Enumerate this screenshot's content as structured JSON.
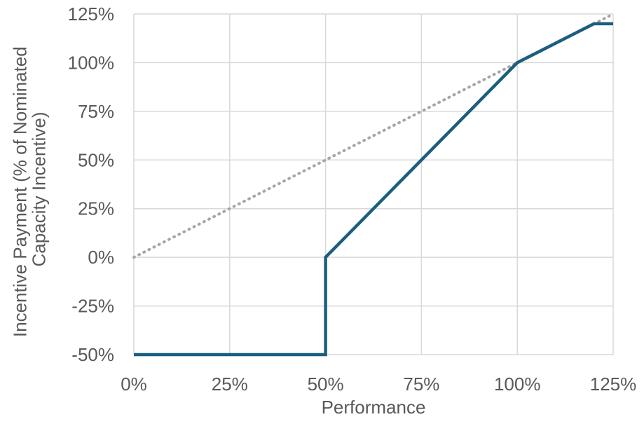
{
  "chart_data": {
    "type": "line",
    "xlabel": "Performance",
    "ylabel_lines": [
      "Incentive Payment (% of Nominated",
      "Capacity Incentive)"
    ],
    "xlim": [
      0,
      125
    ],
    "ylim": [
      -50,
      125
    ],
    "x_ticks": [
      0,
      25,
      50,
      75,
      100,
      125
    ],
    "y_ticks": [
      -50,
      -25,
      0,
      25,
      50,
      75,
      100,
      125
    ],
    "x_tick_labels": [
      "0%",
      "25%",
      "50%",
      "75%",
      "100%",
      "125%"
    ],
    "y_tick_labels": [
      "-50%",
      "-25%",
      "0%",
      "25%",
      "50%",
      "75%",
      "100%",
      "125%"
    ],
    "grid": true,
    "series": [
      {
        "style": "solid",
        "color": "#1b5e7e",
        "points": [
          [
            0,
            -50
          ],
          [
            50,
            -50
          ],
          [
            50,
            0
          ],
          [
            100,
            100
          ],
          [
            120,
            120
          ],
          [
            125,
            120
          ]
        ]
      },
      {
        "style": "dotted",
        "color": "#a6a6a6",
        "points": [
          [
            0,
            0
          ],
          [
            125,
            125
          ]
        ]
      }
    ],
    "gridline_color": "#d9d9d9"
  }
}
